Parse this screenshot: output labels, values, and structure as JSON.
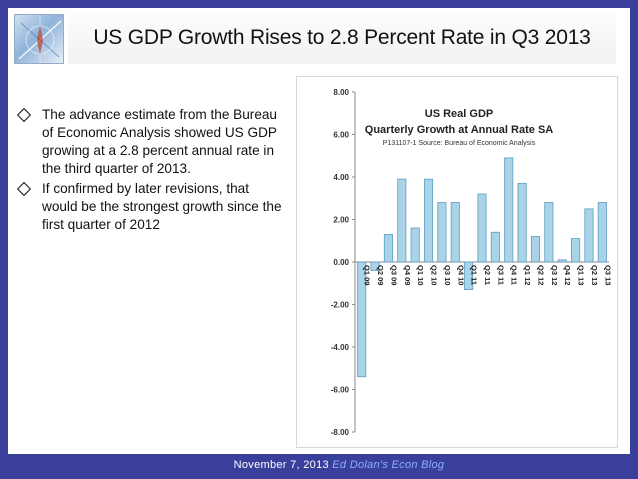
{
  "slide": {
    "title": "US GDP Growth Rises to 2.8 Percent Rate in Q3 2013",
    "bullets": [
      "The advance estimate from the Bureau of Economic Analysis showed US GDP growing at a 2.8 percent annual rate in the third quarter of 2013.",
      "If confirmed by later revisions, that would be the strongest growth since the first quarter of 2012"
    ],
    "footer_date": "November 7, 2013",
    "footer_blog": "Ed Dolan's Econ Blog"
  },
  "colors": {
    "background": "#3b3f9c",
    "bar_fill": "#a9d3e8",
    "bar_stroke": "#5f9fc0"
  },
  "icons": {
    "bullet": "diamond-outline-icon",
    "logo": "compass-logo-icon"
  },
  "chart_data": {
    "type": "bar",
    "title": "US Real GDP",
    "subtitle": "Quarterly Growth at Annual Rate SA",
    "source": "P131107-1 Source: Bureau of Economic Analysis",
    "categories": [
      "Q1 09",
      "Q2 09",
      "Q3 09",
      "Q4 09",
      "Q1 10",
      "Q2 10",
      "Q3 10",
      "Q4 10",
      "Q1 11",
      "Q2 11",
      "Q3 11",
      "Q4 11",
      "Q1 12",
      "Q2 12",
      "Q3 12",
      "Q4 12",
      "Q1 13",
      "Q2 13",
      "Q3 13"
    ],
    "values": [
      -5.4,
      -0.4,
      1.3,
      3.9,
      1.6,
      3.9,
      2.8,
      2.8,
      -1.3,
      3.2,
      1.4,
      4.9,
      3.7,
      1.2,
      2.8,
      0.1,
      1.1,
      2.5,
      2.8
    ],
    "ylim": [
      -8,
      8
    ],
    "yticks": [
      "-8.00",
      "-6.00",
      "-4.00",
      "-2.00",
      "0.00",
      "2.00",
      "4.00",
      "6.00",
      "8.00"
    ],
    "grid": false,
    "legend": "none"
  }
}
